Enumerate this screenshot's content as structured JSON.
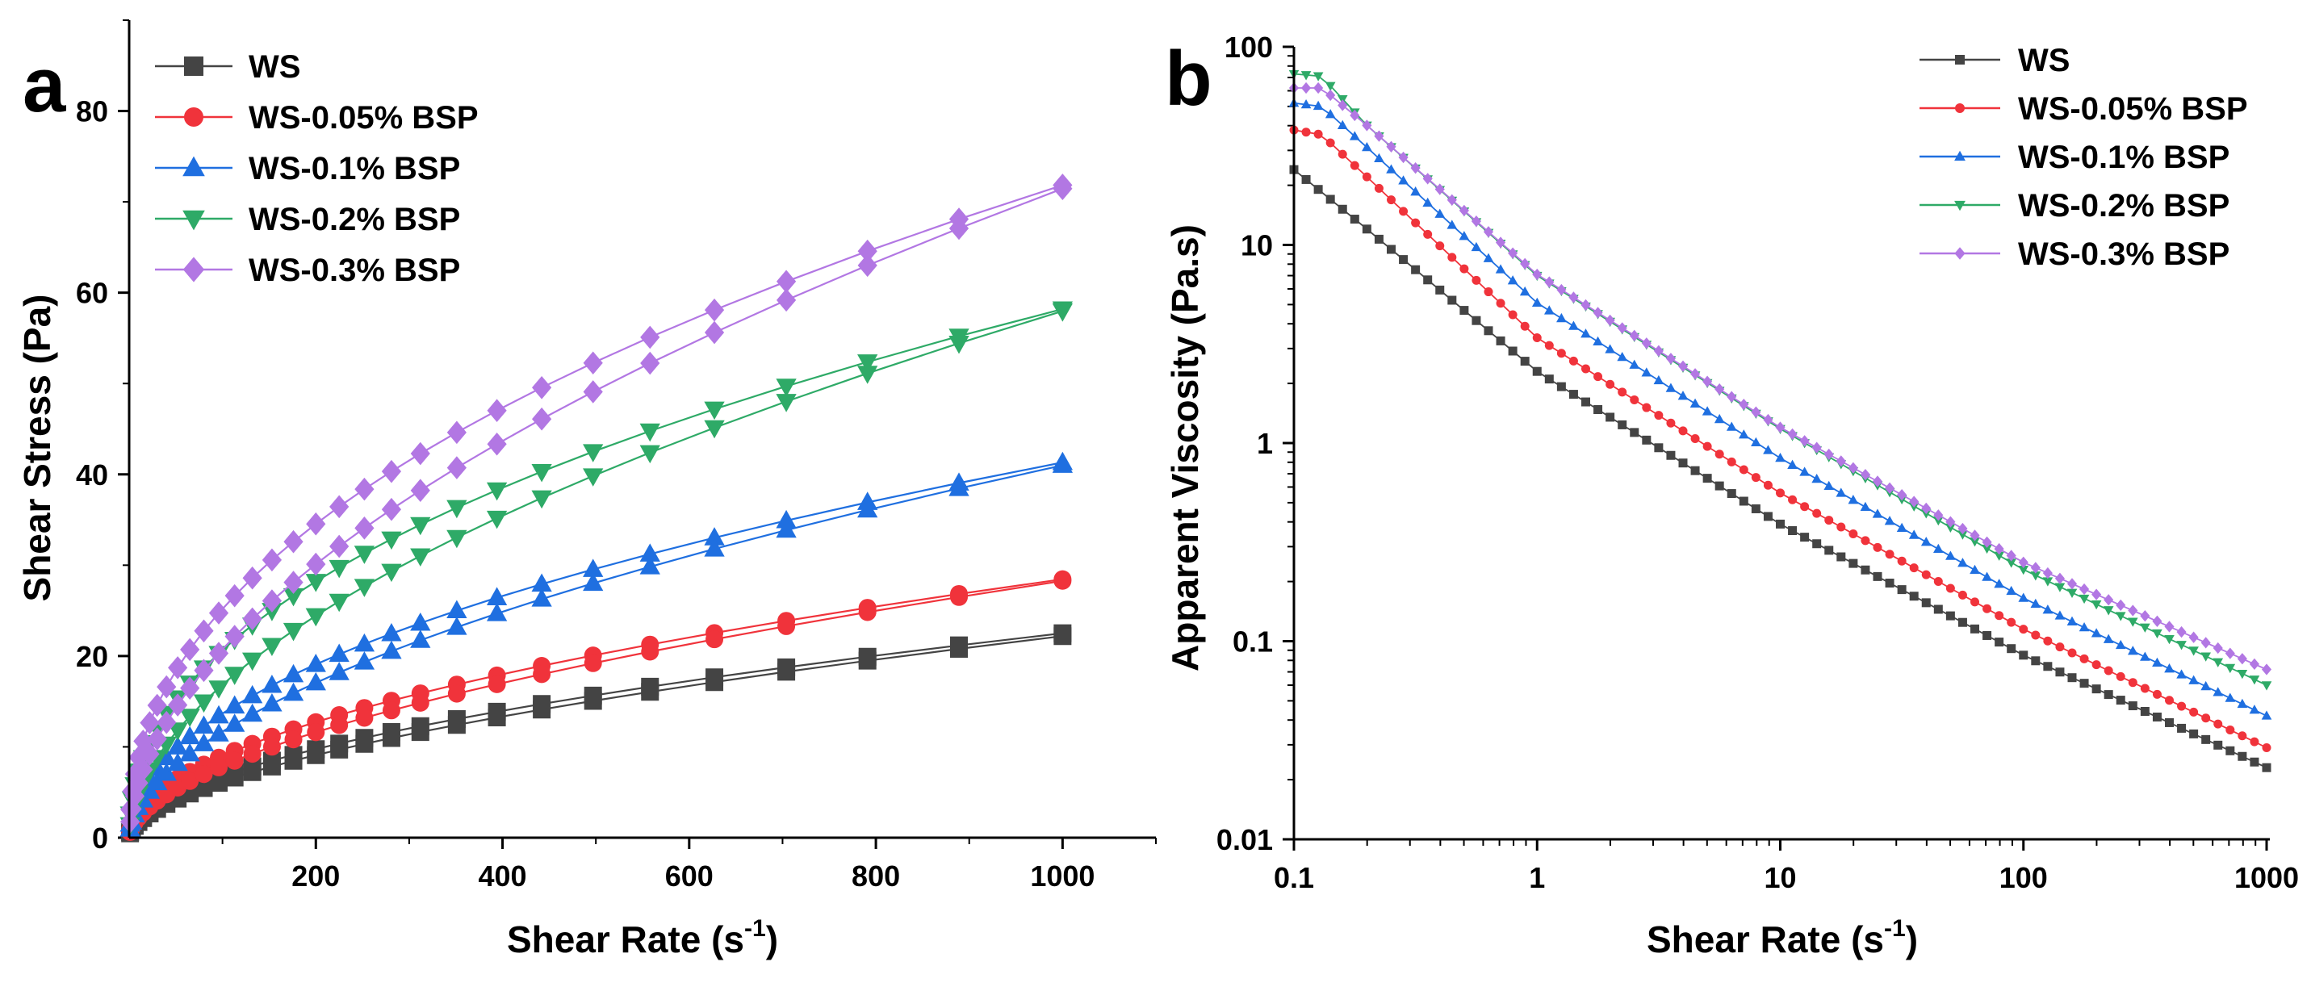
{
  "colors": {
    "WS": "#444444",
    "WS-0.05% BSP": "#f0333b",
    "WS-0.1% BSP": "#1f6fe0",
    "WS-0.2% BSP": "#2eaa67",
    "WS-0.3% BSP": "#b277e3"
  },
  "chart_data": [
    {
      "panel": "a",
      "type": "line",
      "xlabel": "Shear Rate (s",
      "xlabel_sup": "-1",
      "xlabel_end": ")",
      "ylabel": "Shear Stress (Pa)",
      "xlim": [
        0,
        1100
      ],
      "ylim": [
        0,
        90
      ],
      "xticks": [
        200,
        400,
        600,
        800,
        1000
      ],
      "yticks": [
        0,
        20,
        40,
        60,
        80
      ],
      "grid": false,
      "legend": "top-left",
      "marker_x": [
        1,
        3,
        6,
        10,
        15,
        22,
        30,
        40,
        52,
        65,
        80,
        96,
        113,
        132,
        153,
        176,
        200,
        225,
        252,
        281,
        312,
        351,
        394,
        442,
        497,
        558,
        627,
        704,
        791,
        889,
        1000
      ],
      "series": [
        {
          "name": "WS",
          "marker": "square",
          "K": 0.62,
          "n": 0.52,
          "K_down": 0.48,
          "n_down": 0.555
        },
        {
          "name": "WS-0.05% BSP",
          "marker": "circle",
          "K": 0.9,
          "n": 0.5,
          "K_down": 0.62,
          "n_down": 0.553
        },
        {
          "name": "WS-0.1% BSP",
          "marker": "triangle-up",
          "K": 1.5,
          "n": 0.48,
          "K_down": 0.95,
          "n_down": 0.545
        },
        {
          "name": "WS-0.2% BSP",
          "marker": "triangle-down",
          "K": 2.6,
          "n": 0.45,
          "K_down": 1.42,
          "n_down": 0.537
        },
        {
          "name": "WS-0.3% BSP",
          "marker": "diamond",
          "K": 3.1,
          "n": 0.455,
          "K_down": 1.75,
          "n_down": 0.537
        }
      ]
    },
    {
      "panel": "b",
      "type": "line",
      "xscale": "log",
      "yscale": "log",
      "xlabel": "Shear Rate (s",
      "xlabel_sup": "-1",
      "xlabel_end": ")",
      "ylabel": "Apparent Viscosity (Pa.s)",
      "xlim": [
        0.1,
        1000
      ],
      "ylim": [
        0.01,
        100
      ],
      "xticks": [
        0.1,
        1,
        10,
        100,
        1000
      ],
      "xticklabels": [
        "0.1",
        "1",
        "10",
        "100",
        "1000"
      ],
      "yticks": [
        0.01,
        0.1,
        1,
        10,
        100
      ],
      "yticklabels": [
        "0.01",
        "0.1",
        "1",
        "10",
        "100"
      ],
      "grid": false,
      "legend": "top-right",
      "points_per_series": 81,
      "series": [
        {
          "name": "WS",
          "marker": "square",
          "knots_x": [
            0.1,
            0.2,
            1,
            10,
            100,
            1000
          ],
          "knots_y": [
            24,
            12,
            2.3,
            0.39,
            0.085,
            0.023
          ]
        },
        {
          "name": "WS-0.05% BSP",
          "marker": "circle",
          "knots_x": [
            0.1,
            0.13,
            0.2,
            1,
            10,
            100,
            1000
          ],
          "knots_y": [
            38,
            36,
            22,
            3.4,
            0.56,
            0.115,
            0.029
          ]
        },
        {
          "name": "WS-0.1% BSP",
          "marker": "triangle-up",
          "knots_x": [
            0.1,
            0.13,
            0.2,
            1,
            10,
            100,
            1000
          ],
          "knots_y": [
            52,
            50,
            31,
            5.1,
            0.84,
            0.165,
            0.042
          ]
        },
        {
          "name": "WS-0.2% BSP",
          "marker": "triangle-down",
          "knots_x": [
            0.1,
            0.13,
            0.2,
            1,
            10,
            100,
            1000
          ],
          "knots_y": [
            73,
            71,
            40,
            7.0,
            1.18,
            0.23,
            0.06
          ]
        },
        {
          "name": "WS-0.3% BSP",
          "marker": "diamond",
          "knots_x": [
            0.1,
            0.13,
            0.2,
            1,
            10,
            100,
            1000
          ],
          "knots_y": [
            62,
            62,
            40,
            7.1,
            1.2,
            0.25,
            0.072
          ]
        }
      ]
    }
  ]
}
